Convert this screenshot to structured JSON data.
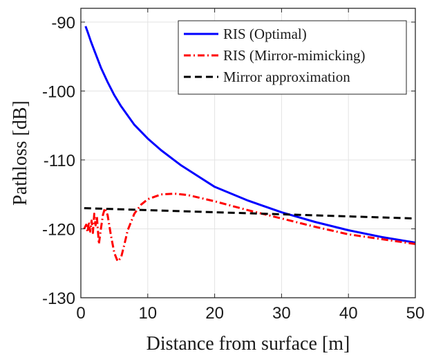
{
  "chart_data": {
    "type": "line",
    "xlabel": "Distance from surface [m]",
    "ylabel": "Pathloss [dB]",
    "xlim": [
      0,
      50
    ],
    "ylim": [
      -130,
      -88
    ],
    "xticks": [
      0,
      10,
      20,
      30,
      40,
      50
    ],
    "yticks": [
      -90,
      -100,
      -110,
      -120,
      -130
    ],
    "xtick_labels": [
      "0",
      "10",
      "20",
      "30",
      "40",
      "50"
    ],
    "ytick_labels": [
      "-90",
      "-100",
      "-110",
      "-120",
      "-130"
    ],
    "grid": true,
    "legend_position": "top-right",
    "series": [
      {
        "name": "RIS (Optimal)",
        "color": "#0000ff",
        "style": "solid",
        "x": [
          0.7,
          1,
          1.5,
          2,
          3,
          4,
          5,
          6,
          8,
          10,
          12,
          15,
          20,
          25,
          30,
          35,
          40,
          45,
          50
        ],
        "y": [
          -90.6,
          -91.4,
          -92.8,
          -94.1,
          -96.6,
          -98.7,
          -100.6,
          -102.2,
          -104.9,
          -106.9,
          -108.6,
          -110.8,
          -113.9,
          -115.9,
          -117.6,
          -119.0,
          -120.2,
          -121.2,
          -122.0
        ]
      },
      {
        "name": "RIS (Mirror-mimicking)",
        "color": "#ff0000",
        "style": "dashdot",
        "x": [
          0.5,
          0.8,
          1.0,
          1.2,
          1.4,
          1.6,
          1.8,
          2.0,
          2.2,
          2.4,
          2.7,
          3.0,
          3.3,
          3.6,
          4.0,
          4.5,
          5.0,
          5.5,
          6.0,
          6.5,
          7,
          8,
          9,
          10,
          12,
          14,
          16,
          20,
          25,
          30,
          35,
          40,
          45,
          50
        ],
        "y": [
          -120.0,
          -119.4,
          -120.5,
          -119.0,
          -120.4,
          -118.8,
          -120.6,
          -117.8,
          -119.5,
          -118.2,
          -122.2,
          -120.0,
          -118.0,
          -117.0,
          -118.0,
          -121.0,
          -123.5,
          -124.7,
          -124.2,
          -122.3,
          -120.2,
          -117.8,
          -116.5,
          -115.7,
          -115.0,
          -114.9,
          -115.1,
          -116.0,
          -117.3,
          -118.5,
          -119.7,
          -120.8,
          -121.5,
          -122.2
        ]
      },
      {
        "name": "Mirror approximation",
        "color": "#000000",
        "style": "dashed",
        "x": [
          0.5,
          50
        ],
        "y": [
          -117.0,
          -118.5
        ]
      }
    ]
  }
}
